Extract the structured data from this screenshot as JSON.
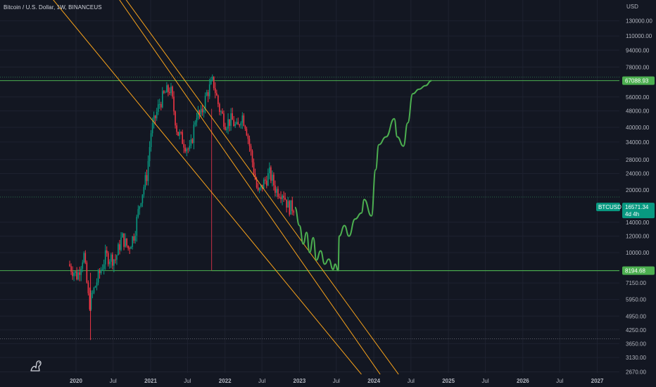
{
  "header": {
    "title": "Bitcoin / U.S. Dollar, 1W, BINANCEUS"
  },
  "chart_data": {
    "type": "candlestick",
    "symbol": "BTCUSD",
    "interval": "1W",
    "exchange": "BINANCEUS",
    "currency": "USD",
    "y_scale": "log",
    "ylim": [
      2600,
      160000
    ],
    "xlim": [
      "2019-07-15",
      "2027-07-15"
    ],
    "y_ticks": [
      {
        "value": 130000,
        "label": "130000.00"
      },
      {
        "value": 110000,
        "label": "110000.00"
      },
      {
        "value": 94000,
        "label": "94000.00"
      },
      {
        "value": 78000,
        "label": "78000.00"
      },
      {
        "value": 56000,
        "label": "56000.00"
      },
      {
        "value": 48000,
        "label": "48000.00"
      },
      {
        "value": 40000,
        "label": "40000.00"
      },
      {
        "value": 34000,
        "label": "34000.00"
      },
      {
        "value": 28000,
        "label": "28000.00"
      },
      {
        "value": 24000,
        "label": "24000.00"
      },
      {
        "value": 20000,
        "label": "20000.00"
      },
      {
        "value": 14000,
        "label": "14000.00"
      },
      {
        "value": 12000,
        "label": "12000.00"
      },
      {
        "value": 10000,
        "label": "10000.00"
      },
      {
        "value": 7150,
        "label": "7150.00"
      },
      {
        "value": 5950,
        "label": "5950.00"
      },
      {
        "value": 4950,
        "label": "4950.00"
      },
      {
        "value": 4250,
        "label": "4250.00"
      },
      {
        "value": 3650,
        "label": "3650.00"
      },
      {
        "value": 3130,
        "label": "3130.00"
      },
      {
        "value": 2670,
        "label": "2670.00"
      }
    ],
    "x_ticks": [
      {
        "date": "2020-01-01",
        "label": "2020"
      },
      {
        "date": "2020-07-01",
        "label": "Jul"
      },
      {
        "date": "2021-01-01",
        "label": "2021"
      },
      {
        "date": "2021-07-01",
        "label": "Jul"
      },
      {
        "date": "2022-01-01",
        "label": "2022"
      },
      {
        "date": "2022-07-01",
        "label": "Jul"
      },
      {
        "date": "2023-01-01",
        "label": "2023"
      },
      {
        "date": "2023-07-01",
        "label": "Jul"
      },
      {
        "date": "2024-01-01",
        "label": "2024"
      },
      {
        "date": "2024-07-01",
        "label": "Jul"
      },
      {
        "date": "2025-01-01",
        "label": "2025"
      },
      {
        "date": "2025-07-01",
        "label": "Jul"
      },
      {
        "date": "2026-01-01",
        "label": "2026"
      },
      {
        "date": "2026-07-01",
        "label": "Jul"
      },
      {
        "date": "2027-01-01",
        "label": "2027"
      }
    ],
    "price_anchors": [
      [
        "2019-12-01",
        8800
      ],
      [
        "2020-01-15",
        7700
      ],
      [
        "2020-02-15",
        9900
      ],
      [
        "2020-03-12",
        5600
      ],
      [
        "2020-04-15",
        7100
      ],
      [
        "2020-06-01",
        9600
      ],
      [
        "2020-07-20",
        9300
      ],
      [
        "2020-08-20",
        11900
      ],
      [
        "2020-09-20",
        10500
      ],
      [
        "2020-10-20",
        12300
      ],
      [
        "2020-11-20",
        18200
      ],
      [
        "2020-12-20",
        23500
      ],
      [
        "2021-01-10",
        38000
      ],
      [
        "2021-02-20",
        52000
      ],
      [
        "2021-03-20",
        58500
      ],
      [
        "2021-04-15",
        61500
      ],
      [
        "2021-05-19",
        38000
      ],
      [
        "2021-06-20",
        34000
      ],
      [
        "2021-07-20",
        30500
      ],
      [
        "2021-08-20",
        47000
      ],
      [
        "2021-09-10",
        45000
      ],
      [
        "2021-10-10",
        58000
      ],
      [
        "2021-11-10",
        67000
      ],
      [
        "2021-12-10",
        49500
      ],
      [
        "2022-01-10",
        42000
      ],
      [
        "2022-02-10",
        43500
      ],
      [
        "2022-03-10",
        39000
      ],
      [
        "2022-03-30",
        46500
      ],
      [
        "2022-04-20",
        41000
      ],
      [
        "2022-05-15",
        30000
      ],
      [
        "2022-06-18",
        19000
      ],
      [
        "2022-07-15",
        21500
      ],
      [
        "2022-08-15",
        24000
      ],
      [
        "2022-09-15",
        20000
      ],
      [
        "2022-10-20",
        19500
      ],
      [
        "2022-11-15",
        16500
      ],
      [
        "2022-12-10",
        16571.34
      ]
    ],
    "horizontal_levels": [
      {
        "value": 67088.93,
        "label": "67088.93",
        "color": "#4caf50"
      },
      {
        "value": 8194.68,
        "label": "8194.68",
        "color": "#4caf50"
      },
      {
        "value": 18500,
        "color": "#2a6b4a",
        "style": "dotted"
      },
      {
        "value": 3850,
        "color": "#5d606b",
        "style": "dotted"
      }
    ],
    "current_price": {
      "symbol": "BTCUSD",
      "value": 16571.34,
      "label": "16571.34",
      "countdown": "4d 4h",
      "color": "#089981"
    },
    "channel_lines": [
      {
        "from": [
          "2019-07-01",
          200000
        ],
        "to": [
          "2023-11-01",
          2600
        ]
      },
      {
        "from": [
          "2020-06-01",
          200000
        ],
        "to": [
          "2024-02-01",
          2600
        ]
      },
      {
        "from": [
          "2020-07-01",
          200000
        ],
        "to": [
          "2024-05-01",
          2600
        ]
      }
    ],
    "projection": [
      [
        "2022-12-10",
        16500
      ],
      [
        "2023-01-01",
        13500
      ],
      [
        "2023-01-20",
        11000
      ],
      [
        "2023-02-05",
        12500
      ],
      [
        "2023-02-20",
        10000
      ],
      [
        "2023-03-10",
        11800
      ],
      [
        "2023-03-25",
        9200
      ],
      [
        "2023-04-15",
        10200
      ],
      [
        "2023-05-05",
        8800
      ],
      [
        "2023-05-25",
        9300
      ],
      [
        "2023-06-15",
        8300
      ],
      [
        "2023-06-25",
        8800
      ],
      [
        "2023-07-10",
        8194.68
      ],
      [
        "2023-07-15",
        12000
      ],
      [
        "2023-08-10",
        13500
      ],
      [
        "2023-09-01",
        12000
      ],
      [
        "2023-10-01",
        14500
      ],
      [
        "2023-11-01",
        15500
      ],
      [
        "2023-11-15",
        18000
      ],
      [
        "2023-12-20",
        15000
      ],
      [
        "2024-01-10",
        25000
      ],
      [
        "2024-01-25",
        33000
      ],
      [
        "2024-03-01",
        36000
      ],
      [
        "2024-04-10",
        44000
      ],
      [
        "2024-04-25",
        36000
      ],
      [
        "2024-05-25",
        32500
      ],
      [
        "2024-06-15",
        42000
      ],
      [
        "2024-07-10",
        58000
      ],
      [
        "2024-08-10",
        61000
      ],
      [
        "2024-09-10",
        63500
      ],
      [
        "2024-10-10",
        67088.93
      ]
    ],
    "vertical_marker": {
      "date": "2021-11-10",
      "from": 67088.93,
      "to": 8194.68
    }
  }
}
